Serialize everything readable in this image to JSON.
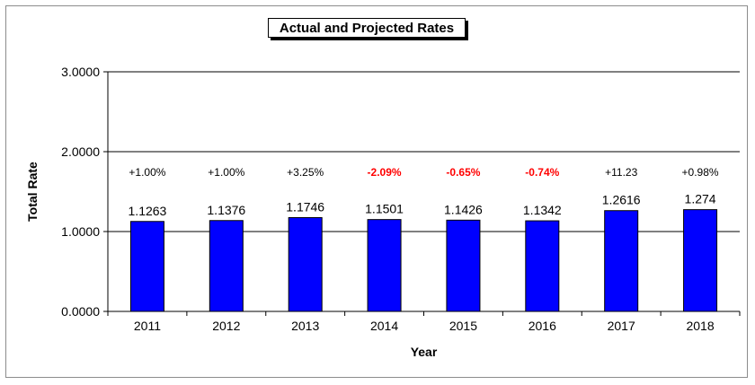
{
  "chart_data": {
    "type": "bar",
    "title": "Actual and Projected Rates",
    "xlabel": "Year",
    "ylabel": "Total Rate",
    "categories": [
      "2011",
      "2012",
      "2013",
      "2014",
      "2015",
      "2016",
      "2017",
      "2018"
    ],
    "values": [
      1.1263,
      1.1376,
      1.1746,
      1.1501,
      1.1426,
      1.1342,
      1.2616,
      1.274
    ],
    "value_labels": [
      "1.1263",
      "1.1376",
      "1.1746",
      "1.1501",
      "1.1426",
      "1.1342",
      "1.2616",
      "1.274"
    ],
    "change_labels": [
      "+1.00%",
      "+1.00%",
      "+3.25%",
      "-2.09%",
      "-0.65%",
      "-0.74%",
      "+11.23",
      "+0.98%"
    ],
    "change_negative": [
      false,
      false,
      false,
      true,
      true,
      true,
      false,
      false
    ],
    "yticks": [
      "0.0000",
      "1.0000",
      "2.0000",
      "3.0000"
    ],
    "ylim": [
      0,
      3
    ],
    "grid": true,
    "colors": {
      "bar": "#0000ff",
      "bar_border": "#000000",
      "negative_change": "#ff0000",
      "positive_change": "#000000"
    }
  }
}
